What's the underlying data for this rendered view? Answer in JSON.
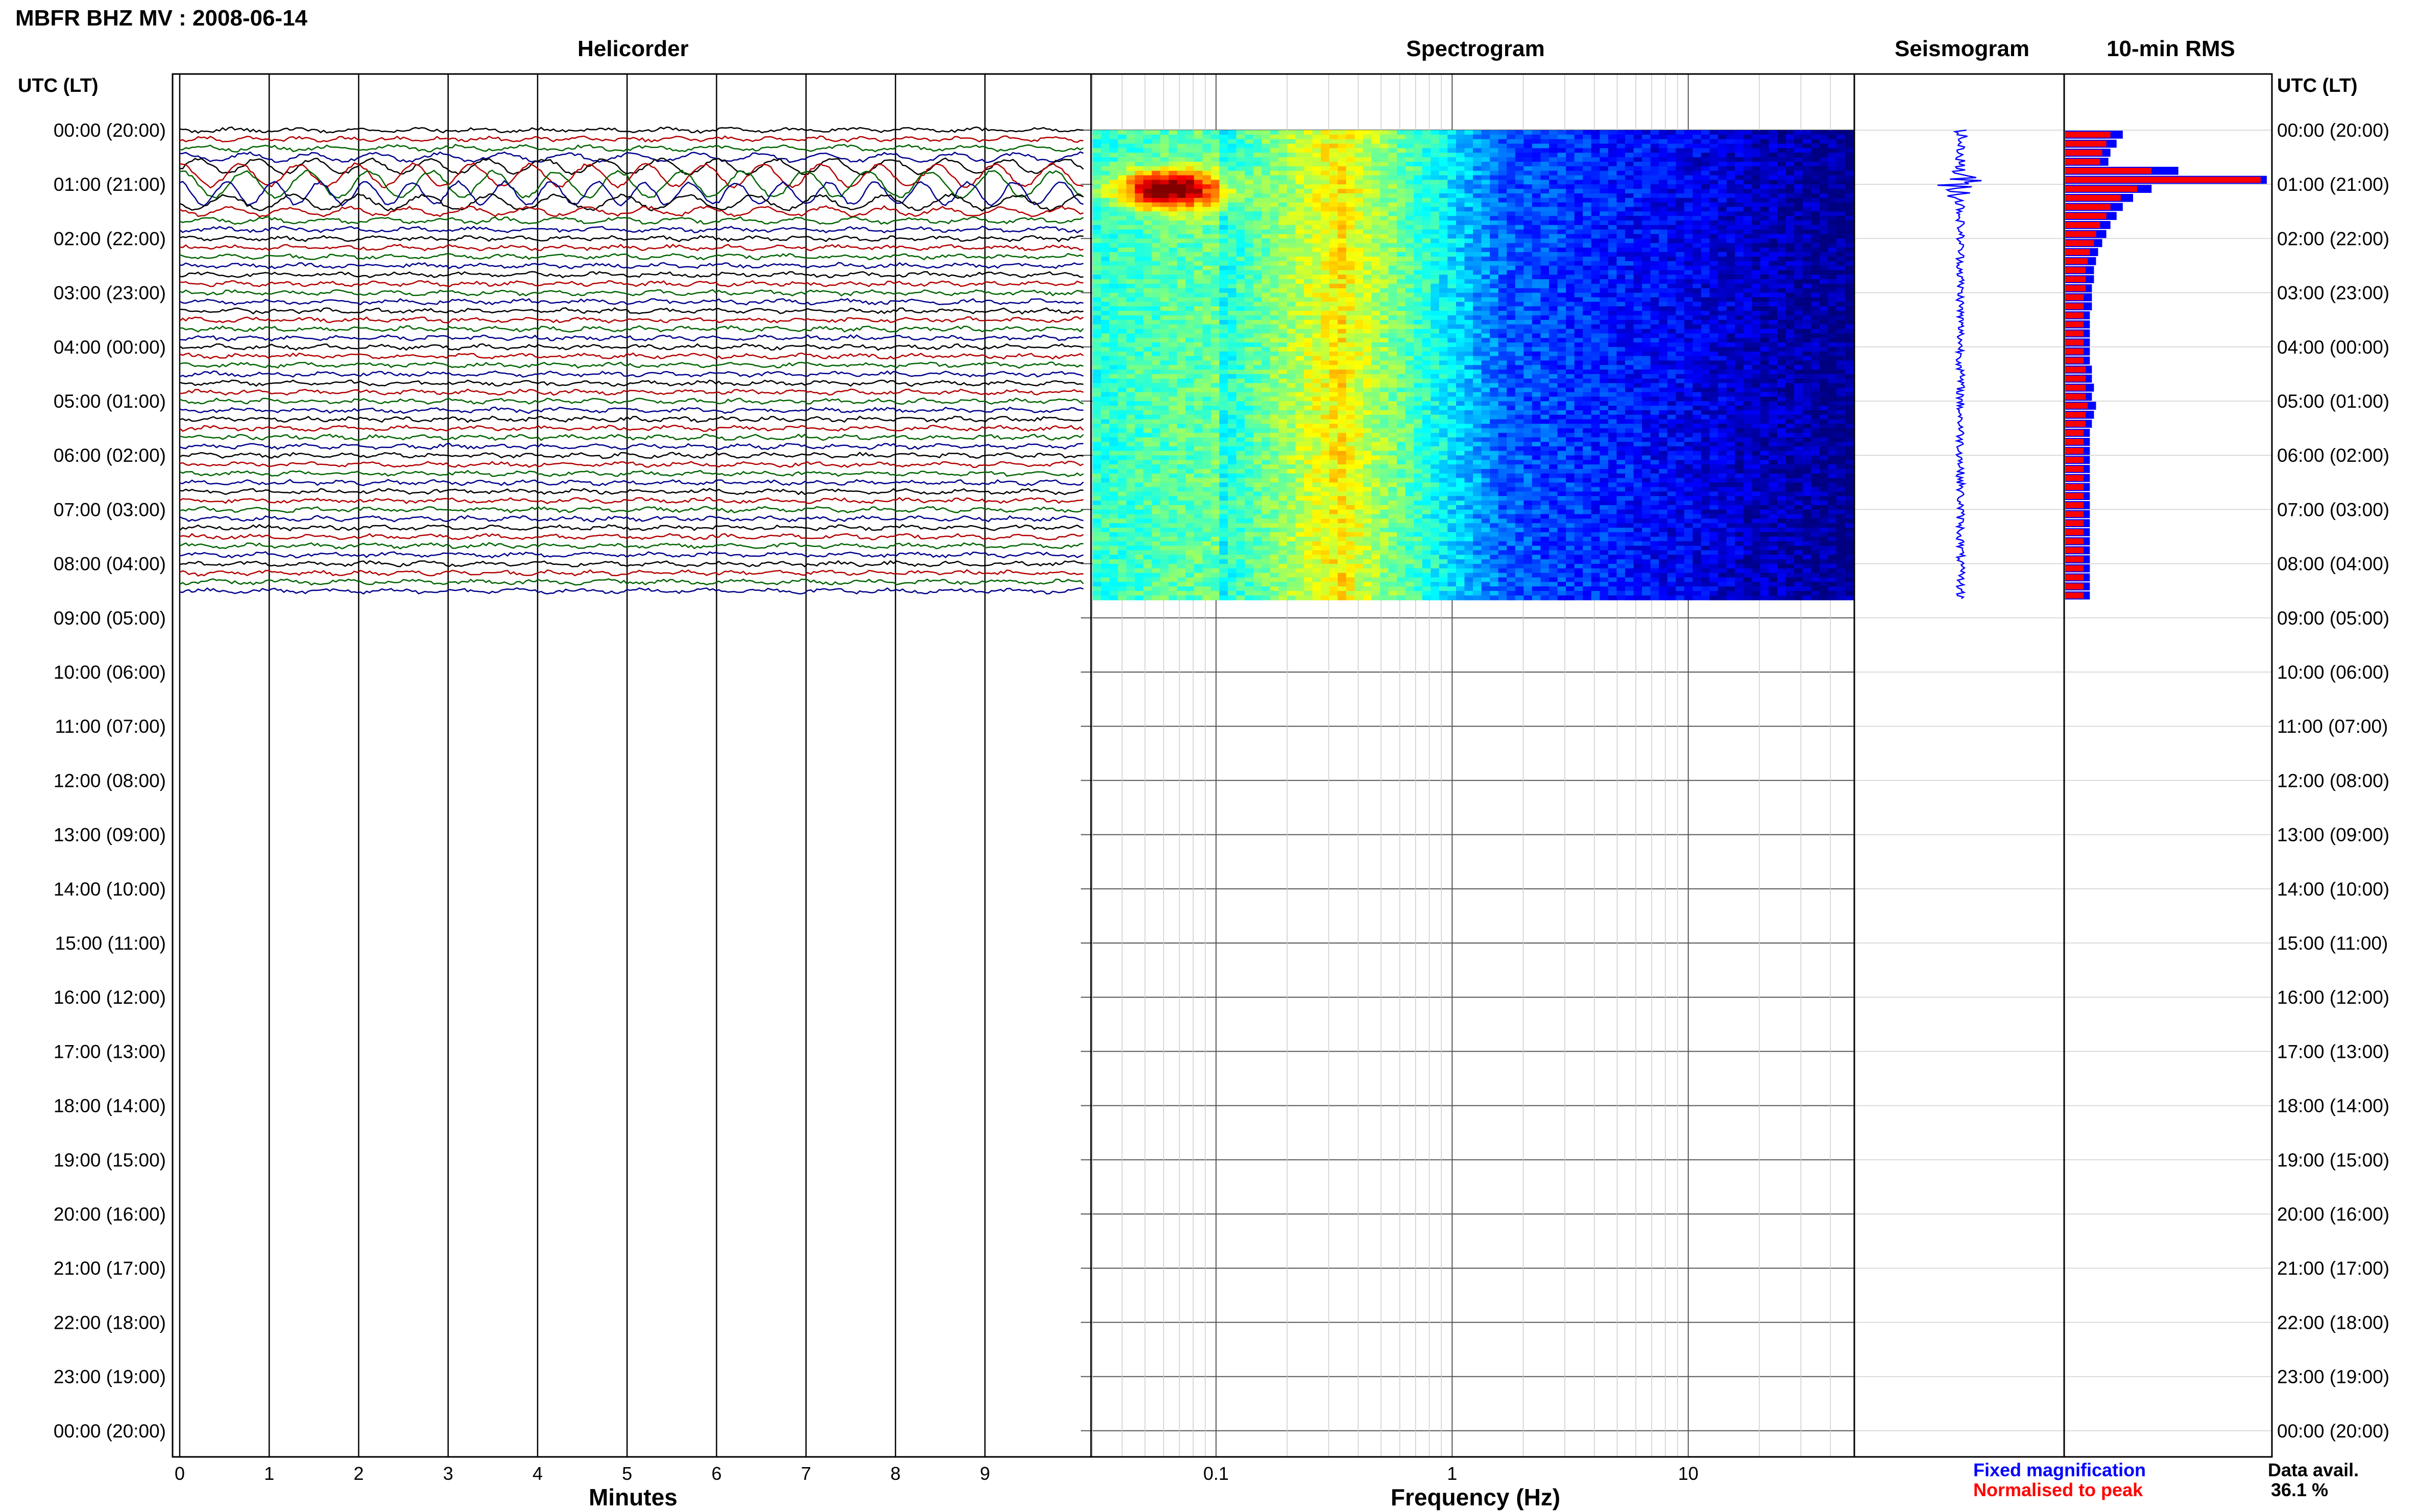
{
  "chart_data": {
    "type": "heatmap",
    "title": "MBFR BHZ MV : 2008-06-14",
    "panels": {
      "helicorder": "Helicorder",
      "spectrogram": "Spectrogram",
      "seismogram": "Seismogram",
      "rms": "10-min RMS"
    },
    "time_axis_label": "UTC (LT)",
    "time_labels": [
      "00:00 (20:00)",
      "01:00 (21:00)",
      "02:00 (22:00)",
      "03:00 (23:00)",
      "04:00 (00:00)",
      "05:00 (01:00)",
      "06:00 (02:00)",
      "07:00 (03:00)",
      "08:00 (04:00)",
      "09:00 (05:00)",
      "10:00 (06:00)",
      "11:00 (07:00)",
      "12:00 (08:00)",
      "13:00 (09:00)",
      "14:00 (10:00)",
      "15:00 (11:00)",
      "16:00 (12:00)",
      "17:00 (13:00)",
      "18:00 (14:00)",
      "19:00 (15:00)",
      "20:00 (16:00)",
      "21:00 (17:00)",
      "22:00 (18:00)",
      "23:00 (19:00)",
      "00:00 (20:00)"
    ],
    "helicorder_xlabel": "Minutes",
    "helicorder_xticks": [
      "0",
      "1",
      "2",
      "3",
      "4",
      "5",
      "6",
      "7",
      "8",
      "9"
    ],
    "helicorder_trace_colors": [
      "#000000",
      "#b30000",
      "#006400",
      "#00008b"
    ],
    "spectrogram_xlabel": "Frequency (Hz)",
    "spectrogram_xticks": [
      {
        "label": "0.1",
        "value": 0.1
      },
      {
        "label": "1",
        "value": 1
      },
      {
        "label": "10",
        "value": 10
      }
    ],
    "spectrogram_xlim": [
      0.03,
      50
    ],
    "xscale": "log",
    "data_hours": 8.67,
    "total_hours": 24,
    "rms_blue": [
      0.28,
      0.25,
      0.22,
      0.21,
      0.55,
      0.98,
      0.42,
      0.33,
      0.28,
      0.25,
      0.22,
      0.2,
      0.18,
      0.16,
      0.15,
      0.14,
      0.14,
      0.13,
      0.13,
      0.13,
      0.12,
      0.12,
      0.12,
      0.12,
      0.12,
      0.12,
      0.13,
      0.13,
      0.14,
      0.13,
      0.15,
      0.14,
      0.13,
      0.12,
      0.12,
      0.12,
      0.12,
      0.12,
      0.12,
      0.12,
      0.12,
      0.12,
      0.12,
      0.12,
      0.12,
      0.12,
      0.12,
      0.12,
      0.12,
      0.12,
      0.12,
      0.12
    ],
    "rms_red": [
      0.22,
      0.2,
      0.18,
      0.17,
      0.42,
      0.95,
      0.35,
      0.27,
      0.22,
      0.2,
      0.17,
      0.15,
      0.14,
      0.12,
      0.11,
      0.1,
      0.1,
      0.1,
      0.09,
      0.09,
      0.09,
      0.09,
      0.09,
      0.09,
      0.09,
      0.09,
      0.1,
      0.1,
      0.1,
      0.1,
      0.11,
      0.1,
      0.1,
      0.09,
      0.09,
      0.09,
      0.09,
      0.09,
      0.09,
      0.09,
      0.09,
      0.09,
      0.09,
      0.09,
      0.09,
      0.09,
      0.09,
      0.09,
      0.09,
      0.09,
      0.09,
      0.09
    ],
    "legend": [
      {
        "label": "Fixed magnification",
        "color": "#0000ff"
      },
      {
        "label": "Normalised to peak",
        "color": "#ff0000"
      }
    ],
    "data_avail_label": "Data avail.",
    "data_avail_value": "36.1 %"
  }
}
